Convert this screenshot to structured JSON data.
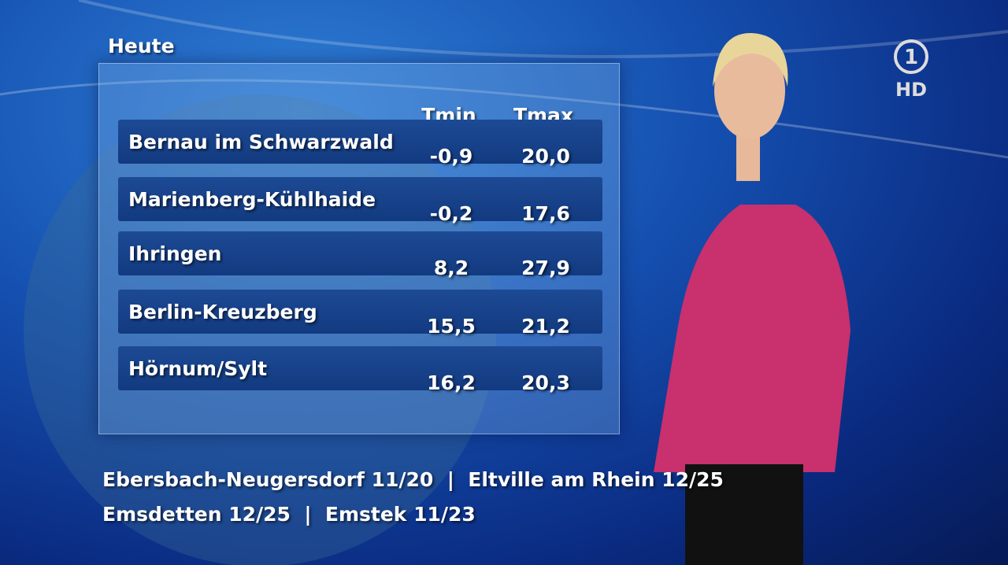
{
  "header": {
    "title": "Heute"
  },
  "logo": {
    "number": "1",
    "label": "HD"
  },
  "table": {
    "columns": [
      "Tmin",
      "Tmax"
    ],
    "rows": [
      [
        "Bernau im Schwarzwald",
        "-0,9",
        "20,0"
      ],
      [
        "Marienberg-Kühlhaide",
        "-0,2",
        "17,6"
      ],
      [
        "Ihringen",
        "8,2",
        "27,9"
      ],
      [
        "Berlin-Kreuzberg",
        "15,5",
        "21,2"
      ],
      [
        "Hörnum/Sylt",
        "16,2",
        "20,3"
      ]
    ]
  },
  "ticker": {
    "lines": [
      "Ebersbach-Neugersdorf 11/20  |  Eltville am Rhein 12/25",
      "Emsdetten 12/25  |  Emstek 11/23"
    ]
  }
}
